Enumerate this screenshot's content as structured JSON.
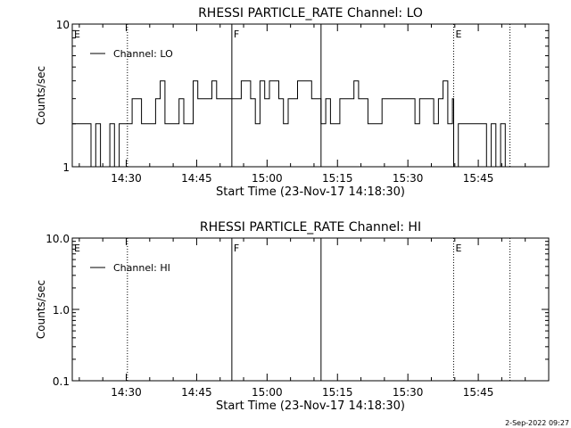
{
  "footer": {
    "timestamp": "2-Sep-2022 09:27"
  },
  "colors": {
    "background": "#ffffff",
    "foreground": "#000000"
  },
  "chart_data": [
    {
      "type": "line",
      "title": "RHESSI PARTICLE_RATE Channel: LO",
      "xlabel": "Start Time (23-Nov-17 14:18:30)",
      "ylabel": "Counts/sec",
      "y_scale": "log",
      "xlim": [
        "14:18:30",
        "16:00:00"
      ],
      "ylim": [
        1,
        10
      ],
      "x_ticks": [
        "14:30",
        "14:45",
        "15:00",
        "15:15",
        "15:30",
        "15:45"
      ],
      "y_ticks": [
        "1",
        "10"
      ],
      "legend": {
        "position": "top-left",
        "entries": [
          "Channel: LO"
        ]
      },
      "markers": [
        {
          "time": "14:18:30",
          "style": "dotted",
          "label": "E"
        },
        {
          "time": "14:30:15",
          "style": "dotted",
          "label": ""
        },
        {
          "time": "14:52:30",
          "style": "solid",
          "label": "F"
        },
        {
          "time": "15:11:30",
          "style": "solid",
          "label": ""
        },
        {
          "time": "15:39:45",
          "style": "dotted",
          "label": "E"
        },
        {
          "time": "15:51:45",
          "style": "dotted",
          "label": ""
        }
      ],
      "series": [
        {
          "name": "Channel: LO",
          "segments": [
            {
              "start": "14:18:30",
              "end": "14:30:15",
              "levels": [
                2,
                1
              ]
            },
            {
              "start": "14:30:15",
              "end": "14:52:30",
              "levels": [
                3,
                2,
                4
              ]
            },
            {
              "start": "14:52:30",
              "end": "15:11:30",
              "levels": [
                3,
                4,
                2
              ]
            },
            {
              "start": "15:11:30",
              "end": "15:39:45",
              "levels": [
                3,
                2,
                4
              ]
            },
            {
              "start": "15:39:45",
              "end": "15:51:45",
              "levels": [
                2,
                1
              ]
            }
          ]
        }
      ]
    },
    {
      "type": "line",
      "title": "RHESSI PARTICLE_RATE Channel: HI",
      "xlabel": "Start Time (23-Nov-17 14:18:30)",
      "ylabel": "Counts/sec",
      "y_scale": "log",
      "xlim": [
        "14:18:30",
        "16:00:00"
      ],
      "ylim": [
        0.1,
        10
      ],
      "x_ticks": [
        "14:30",
        "14:45",
        "15:00",
        "15:15",
        "15:30",
        "15:45"
      ],
      "y_ticks": [
        "0.1",
        "1.0",
        "10.0"
      ],
      "legend": {
        "position": "top-left",
        "entries": [
          "Channel: HI"
        ]
      },
      "markers": [
        {
          "time": "14:18:30",
          "style": "dotted",
          "label": "E"
        },
        {
          "time": "14:30:15",
          "style": "dotted",
          "label": ""
        },
        {
          "time": "14:52:30",
          "style": "solid",
          "label": "F"
        },
        {
          "time": "15:11:30",
          "style": "solid",
          "label": ""
        },
        {
          "time": "15:39:45",
          "style": "dotted",
          "label": "E"
        },
        {
          "time": "15:51:45",
          "style": "dotted",
          "label": ""
        }
      ],
      "series": [
        {
          "name": "Channel: HI",
          "segments": []
        }
      ]
    }
  ]
}
